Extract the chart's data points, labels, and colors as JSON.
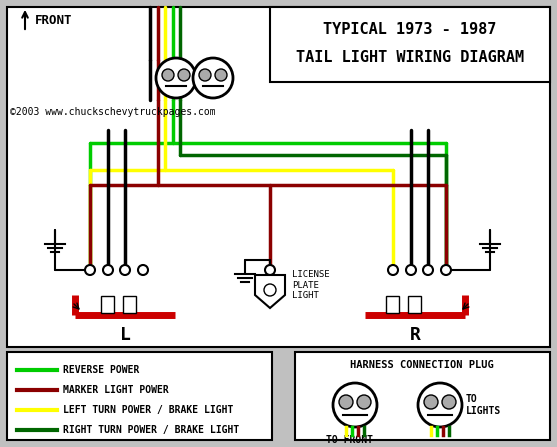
{
  "title_line1": "TYPICAL 1973 - 1987",
  "title_line2": "TAIL LIGHT WIRING DIAGRAM",
  "bg_color": "#c0c0c0",
  "wire_colors": {
    "green_bright": "#00cc00",
    "dark_green": "#006600",
    "dark_red": "#8b0000",
    "yellow": "#ffff00",
    "black": "#000000",
    "white": "#ffffff",
    "red": "#cc0000",
    "gray": "#aaaaaa"
  },
  "legend_items": [
    {
      "color": "#00cc00",
      "label": "REVERSE POWER"
    },
    {
      "color": "#8b0000",
      "label": "MARKER LIGHT POWER"
    },
    {
      "color": "#ffff00",
      "label": "LEFT TURN POWER / BRAKE LIGHT"
    },
    {
      "color": "#006600",
      "label": "RIGHT TURN POWER / BRAKE LIGHT"
    }
  ],
  "copyright": "©2003 www.chuckschevytruckpages.com",
  "front_label": "FRONT",
  "left_label": "L",
  "right_label": "R",
  "license_label": "LICENSE\nPLATE\nLIGHT",
  "harness_title": "HARNESS CONNECTION PLUG",
  "to_front": "TO FRONT",
  "to_lights": "TO\nLIGHTS"
}
